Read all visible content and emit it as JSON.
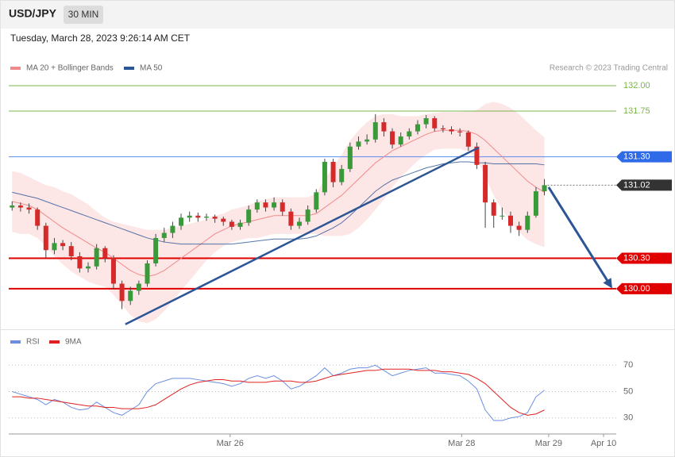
{
  "header": {
    "symbol": "USD/JPY",
    "interval": "30 MIN",
    "datetime": "Tuesday, March 28, 2023 9:26:14 AM CET",
    "credit": "Research © 2023 Trading Central"
  },
  "chart_data": [
    {
      "type": "candlestick",
      "x": [
        0,
        1,
        2,
        3,
        4,
        5,
        6,
        7,
        8,
        9,
        10,
        11,
        12,
        13,
        14,
        15,
        16,
        17,
        18,
        19,
        20,
        21,
        22,
        23,
        24,
        25,
        26,
        27,
        28,
        29,
        30,
        31,
        32,
        33,
        34,
        35,
        36,
        37,
        38,
        39,
        40,
        41,
        42,
        43,
        44,
        45,
        46,
        47,
        48,
        49,
        50,
        51,
        52,
        53,
        54,
        55,
        56,
        57,
        58,
        59,
        60,
        61,
        62,
        63
      ],
      "open": [
        130.8,
        130.82,
        130.8,
        130.78,
        130.62,
        130.38,
        130.45,
        130.42,
        130.32,
        130.2,
        130.22,
        130.4,
        130.3,
        130.05,
        129.88,
        129.98,
        130.05,
        130.25,
        130.5,
        130.55,
        130.62,
        130.7,
        130.72,
        130.7,
        130.71,
        130.69,
        130.66,
        130.61,
        130.65,
        130.78,
        130.85,
        130.8,
        130.85,
        130.76,
        130.62,
        130.66,
        130.78,
        130.95,
        131.25,
        131.05,
        131.18,
        131.4,
        131.45,
        131.47,
        131.64,
        131.55,
        131.42,
        131.5,
        131.55,
        131.62,
        131.68,
        131.58,
        131.57,
        131.55,
        131.54,
        131.4,
        131.22,
        130.85,
        130.72,
        130.72,
        130.62,
        130.58,
        130.72,
        130.96
      ],
      "high": [
        130.86,
        130.85,
        130.84,
        130.8,
        130.65,
        130.5,
        130.48,
        130.46,
        130.36,
        130.26,
        130.44,
        130.42,
        130.33,
        130.08,
        130.02,
        130.08,
        130.28,
        130.54,
        130.6,
        130.66,
        130.74,
        130.76,
        130.75,
        130.74,
        130.73,
        130.71,
        130.68,
        130.68,
        130.82,
        130.88,
        130.88,
        130.9,
        130.88,
        130.79,
        130.7,
        130.82,
        130.98,
        131.28,
        131.28,
        131.22,
        131.44,
        131.5,
        131.52,
        131.72,
        131.68,
        131.58,
        131.54,
        131.58,
        131.66,
        131.71,
        131.7,
        131.61,
        131.6,
        131.58,
        131.56,
        131.44,
        131.25,
        130.88,
        130.8,
        130.76,
        130.66,
        130.76,
        131.0,
        131.08
      ],
      "low": [
        130.77,
        130.76,
        130.74,
        130.58,
        130.3,
        130.34,
        130.38,
        130.28,
        130.16,
        130.16,
        130.19,
        130.26,
        130.0,
        129.8,
        129.84,
        129.94,
        130.02,
        130.22,
        130.46,
        130.5,
        130.58,
        130.66,
        130.66,
        130.67,
        130.65,
        130.62,
        130.58,
        130.58,
        130.62,
        130.75,
        130.76,
        130.77,
        130.72,
        130.58,
        130.59,
        130.63,
        130.75,
        130.92,
        131.0,
        131.02,
        131.15,
        131.37,
        131.42,
        131.44,
        131.5,
        131.38,
        131.4,
        131.47,
        131.52,
        131.58,
        131.55,
        131.54,
        131.52,
        131.5,
        131.36,
        131.18,
        130.6,
        130.6,
        130.68,
        130.55,
        130.52,
        130.55,
        130.7,
        130.92
      ],
      "close": [
        130.82,
        130.8,
        130.78,
        130.62,
        130.38,
        130.45,
        130.42,
        130.32,
        130.2,
        130.22,
        130.4,
        130.3,
        130.05,
        129.88,
        129.98,
        130.05,
        130.25,
        130.5,
        130.55,
        130.62,
        130.7,
        130.72,
        130.7,
        130.71,
        130.69,
        130.66,
        130.61,
        130.65,
        130.78,
        130.85,
        130.8,
        130.85,
        130.76,
        130.62,
        130.66,
        130.78,
        130.95,
        131.25,
        131.05,
        131.18,
        131.4,
        131.45,
        131.47,
        131.64,
        131.55,
        131.42,
        131.5,
        131.55,
        131.62,
        131.68,
        131.58,
        131.57,
        131.55,
        131.54,
        131.4,
        131.22,
        130.85,
        130.72,
        130.72,
        130.62,
        130.58,
        130.72,
        130.96,
        131.02
      ],
      "up_color": "#3a9a3a",
      "down_color": "#d62a2a",
      "series": [
        {
          "name": "MA 20 + Bollinger Bands",
          "color": "#f08a8a",
          "band_color": "#fde0e0",
          "values": [
            130.86,
            130.84,
            130.82,
            130.78,
            130.72,
            130.66,
            130.6,
            130.55,
            130.5,
            130.45,
            130.4,
            130.36,
            130.3,
            130.24,
            130.18,
            130.14,
            130.12,
            130.14,
            130.18,
            130.24,
            130.3,
            130.36,
            130.42,
            130.48,
            130.54,
            130.58,
            130.62,
            130.64,
            130.66,
            130.68,
            130.7,
            130.72,
            130.72,
            130.72,
            130.72,
            130.72,
            130.74,
            130.8,
            130.86,
            130.92,
            131.0,
            131.08,
            131.16,
            131.24,
            131.3,
            131.36,
            131.4,
            131.44,
            131.48,
            131.52,
            131.55,
            131.56,
            131.56,
            131.56,
            131.55,
            131.52,
            131.46,
            131.38,
            131.3,
            131.22,
            131.14,
            131.06,
            131.0,
            130.95
          ],
          "upper": [
            131.16,
            131.14,
            131.1,
            131.06,
            131.02,
            131.0,
            130.96,
            130.93,
            130.88,
            130.83,
            130.76,
            130.7,
            130.66,
            130.64,
            130.62,
            130.6,
            130.58,
            130.58,
            130.58,
            130.6,
            130.62,
            130.64,
            130.66,
            130.68,
            130.72,
            130.74,
            130.78,
            130.8,
            130.82,
            130.86,
            130.88,
            130.9,
            130.9,
            130.9,
            130.9,
            130.9,
            130.94,
            131.08,
            131.2,
            131.32,
            131.46,
            131.56,
            131.64,
            131.7,
            131.72,
            131.72,
            131.7,
            131.7,
            131.7,
            131.72,
            131.73,
            131.74,
            131.74,
            131.74,
            131.75,
            131.76,
            131.82,
            131.84,
            131.82,
            131.78,
            131.72,
            131.64,
            131.56,
            131.49
          ],
          "lower": [
            130.56,
            130.54,
            130.54,
            130.5,
            130.42,
            130.32,
            130.24,
            130.17,
            130.12,
            130.07,
            130.04,
            130.02,
            129.94,
            129.84,
            129.74,
            129.68,
            129.66,
            129.7,
            129.78,
            129.88,
            129.98,
            130.08,
            130.18,
            130.28,
            130.36,
            130.42,
            130.46,
            130.48,
            130.5,
            130.5,
            130.52,
            130.54,
            130.54,
            130.54,
            130.54,
            130.54,
            130.54,
            130.52,
            130.52,
            130.52,
            130.54,
            130.6,
            130.68,
            130.78,
            130.88,
            131.0,
            131.1,
            131.18,
            131.26,
            131.32,
            131.37,
            131.38,
            131.38,
            131.38,
            131.35,
            131.28,
            131.1,
            130.92,
            130.78,
            130.66,
            130.56,
            130.48,
            130.44,
            130.41
          ]
        },
        {
          "name": "MA 50",
          "color": "#2c5596",
          "values": [
            130.95,
            130.93,
            130.91,
            130.89,
            130.86,
            130.83,
            130.8,
            130.77,
            130.74,
            130.71,
            130.68,
            130.65,
            130.62,
            130.59,
            130.56,
            130.53,
            130.5,
            130.48,
            130.46,
            130.45,
            130.44,
            130.44,
            130.44,
            130.44,
            130.44,
            130.44,
            130.44,
            130.45,
            130.46,
            130.47,
            130.48,
            130.49,
            130.49,
            130.49,
            130.49,
            130.5,
            130.52,
            130.56,
            130.6,
            130.65,
            130.72,
            130.8,
            130.88,
            130.96,
            131.02,
            131.07,
            131.1,
            131.13,
            131.16,
            131.19,
            131.21,
            131.23,
            131.24,
            131.25,
            131.25,
            131.24,
            131.24,
            131.23,
            131.23,
            131.23,
            131.23,
            131.23,
            131.23,
            131.22
          ]
        }
      ],
      "levels": [
        {
          "value": 132,
          "label": "132.00",
          "color": "#7ab648"
        },
        {
          "value": 131.75,
          "label": "131.75",
          "color": "#7ab648"
        },
        {
          "value": 131.3,
          "label": "131.30",
          "color": "#5b8def",
          "tag": "#2f6ae8"
        },
        {
          "value": 131.02,
          "label": "131.02",
          "color": "#777777",
          "tag": "#333333",
          "style": "dotted"
        },
        {
          "value": 130.3,
          "label": "130.30",
          "color": "#e00000",
          "tag": "#e00000"
        },
        {
          "value": 130,
          "label": "130.00",
          "color": "#e00000",
          "tag": "#e00000"
        }
      ],
      "trendline": {
        "x": [
          13.4,
          55.2
        ],
        "y": [
          129.65,
          131.39
        ],
        "color": "#2c5596"
      },
      "arrow": {
        "x": [
          63.5,
          70.9
        ],
        "y": [
          131.0,
          130.02
        ],
        "color": "#2c5596"
      },
      "xlim": [
        -0.4,
        71.5
      ],
      "ylim": [
        129.64,
        132.1
      ]
    },
    {
      "type": "line",
      "x": [
        0,
        1,
        2,
        3,
        4,
        5,
        6,
        7,
        8,
        9,
        10,
        11,
        12,
        13,
        14,
        15,
        16,
        17,
        18,
        19,
        20,
        21,
        22,
        23,
        24,
        25,
        26,
        27,
        28,
        29,
        30,
        31,
        32,
        33,
        34,
        35,
        36,
        37,
        38,
        39,
        40,
        41,
        42,
        43,
        44,
        45,
        46,
        47,
        48,
        49,
        50,
        51,
        52,
        53,
        54,
        55,
        56,
        57,
        58,
        59,
        60,
        61,
        62,
        63
      ],
      "series": [
        {
          "name": "RSI",
          "color": "#6a8fe0",
          "values": [
            50,
            48,
            46,
            44,
            40,
            44,
            42,
            38,
            36,
            37,
            42,
            38,
            34,
            32,
            36,
            40,
            50,
            56,
            58,
            60,
            60,
            60,
            59,
            58,
            57,
            56,
            54,
            56,
            60,
            62,
            60,
            62,
            58,
            52,
            54,
            58,
            62,
            68,
            62,
            64,
            67,
            68,
            68,
            70,
            66,
            62,
            64,
            66,
            67,
            68,
            64,
            64,
            63,
            62,
            58,
            52,
            36,
            28,
            28,
            30,
            31,
            34,
            46,
            51
          ]
        },
        {
          "name": "9MA",
          "color": "#e02020",
          "values": [
            46,
            46,
            45,
            45,
            44,
            43,
            42,
            41,
            40,
            39,
            39,
            38,
            38,
            37,
            37,
            37,
            38,
            40,
            44,
            48,
            52,
            55,
            57,
            58,
            59,
            59,
            58,
            58,
            57,
            57,
            57,
            58,
            58,
            58,
            57,
            57,
            58,
            60,
            62,
            63,
            64,
            65,
            66,
            66,
            67,
            67,
            67,
            67,
            66,
            66,
            66,
            65,
            65,
            64,
            63,
            60,
            56,
            50,
            44,
            38,
            34,
            32,
            33,
            36
          ]
        }
      ],
      "xlim": [
        -0.4,
        71.5
      ],
      "ylim": [
        19,
        78
      ],
      "yticks": [
        30,
        50,
        70
      ],
      "grid": true,
      "xticks": [
        {
          "value": 25.8,
          "label": "Mar 26"
        },
        {
          "value": 53.2,
          "label": "Mar 28"
        },
        {
          "value": 63.5,
          "label": "Mar 29"
        },
        {
          "value": 70,
          "label": "Apr 10"
        }
      ]
    }
  ]
}
